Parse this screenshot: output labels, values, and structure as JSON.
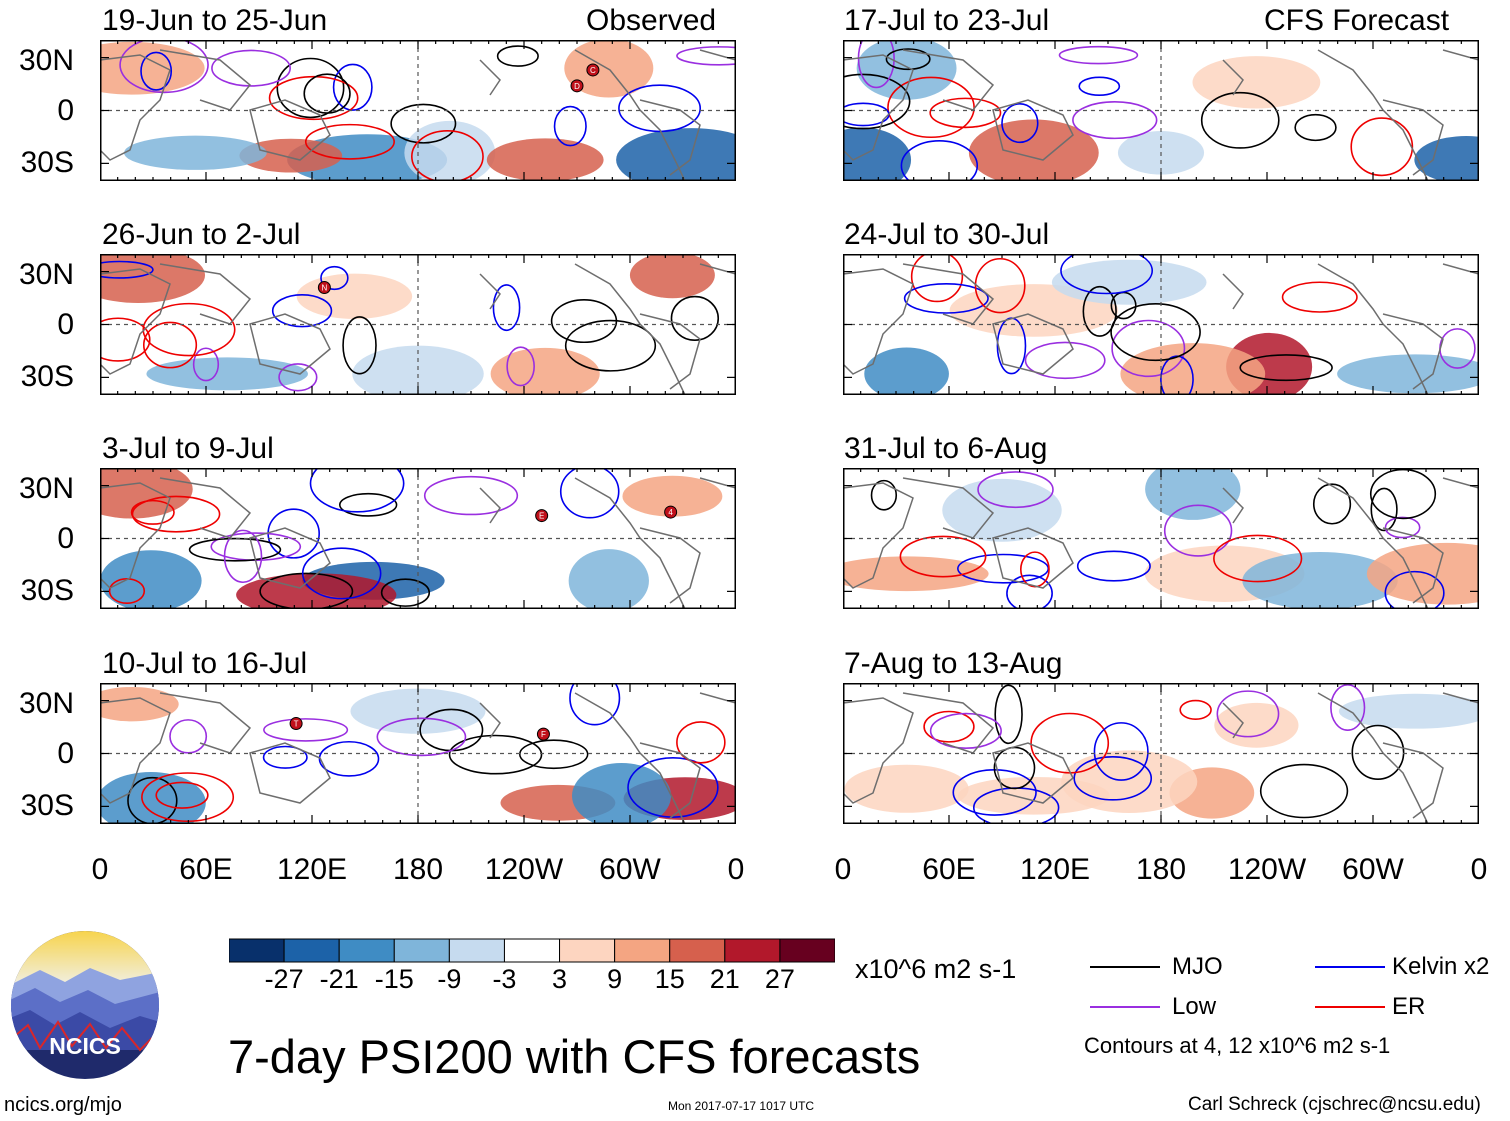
{
  "units": "x10^6 m2 s-1",
  "main_title": "7-day PSI200 with CFS forecasts",
  "left_header_tag": "Observed",
  "right_header_tag": "CFS Forecast",
  "panels_left": [
    {
      "title": "19-Jun to 25-Jun",
      "markers": [
        {
          "label": "C",
          "lon": 279,
          "lat": 23
        },
        {
          "label": "D",
          "lon": 270,
          "lat": 14
        }
      ]
    },
    {
      "title": "26-Jun to 2-Jul",
      "markers": [
        {
          "label": "N",
          "lon": 127,
          "lat": 21
        }
      ]
    },
    {
      "title": "3-Jul to 9-Jul",
      "markers": [
        {
          "label": "E",
          "lon": 250,
          "lat": 13
        },
        {
          "label": "4",
          "lon": 323,
          "lat": 15
        }
      ]
    },
    {
      "title": "10-Jul to 16-Jul",
      "markers": [
        {
          "label": "T",
          "lon": 111,
          "lat": 17
        },
        {
          "label": "F",
          "lon": 251,
          "lat": 11
        }
      ]
    }
  ],
  "panels_right": [
    {
      "title": "17-Jul to 23-Jul"
    },
    {
      "title": "24-Jul to 30-Jul"
    },
    {
      "title": "31-Jul to 6-Aug"
    },
    {
      "title": "7-Aug to 13-Aug"
    }
  ],
  "y_ticks": [
    "30N",
    "0",
    "30S"
  ],
  "x_ticks": [
    "0",
    "60E",
    "120E",
    "180",
    "120W",
    "60W",
    "0"
  ],
  "colorbar": {
    "labels": [
      "-27",
      "-21",
      "-15",
      "-9",
      "-3",
      "3",
      "9",
      "15",
      "21",
      "27"
    ],
    "colors": [
      "#08306b",
      "#1c62a8",
      "#3f8cc4",
      "#7fb5da",
      "#c6dbef",
      "#ffffff",
      "#fdd5c0",
      "#f4a582",
      "#d6604d",
      "#b2182b",
      "#67001f"
    ]
  },
  "legend": [
    {
      "name": "MJO",
      "color": "#000000"
    },
    {
      "name": "Kelvin x2",
      "color": "#0000ee"
    },
    {
      "name": "Low",
      "color": "#9a2fe0"
    },
    {
      "name": "ER",
      "color": "#ee0000"
    }
  ],
  "contour_note": "Contours at 4, 12 x10^6 m2 s-1",
  "logo_text": "NCICS",
  "site": "ncics.org/mjo",
  "timestamp": "Mon 2017-07-17 1017 UTC",
  "author": "Carl Schreck (cjschrec@ncsu.edu)"
}
